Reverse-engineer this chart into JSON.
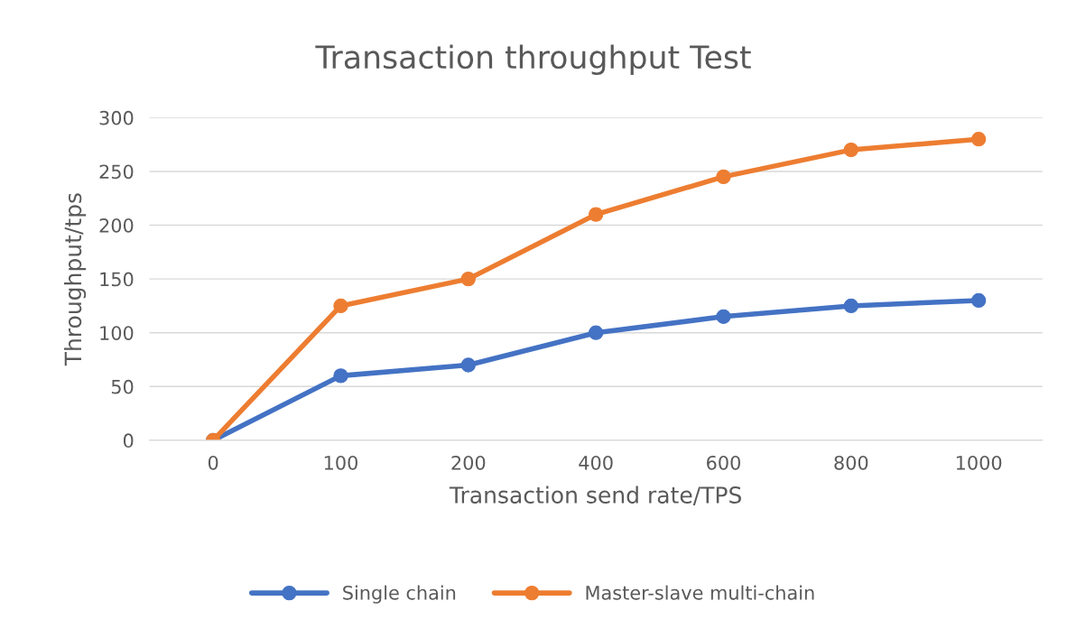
{
  "chart_data": {
    "type": "line",
    "title": "Transaction throughput Test",
    "xlabel": "Transaction send rate/TPS",
    "ylabel": "Throughput/tps",
    "categories": [
      "0",
      "100",
      "200",
      "400",
      "600",
      "800",
      "1000"
    ],
    "series": [
      {
        "name": "Single chain",
        "color": "#4472c4",
        "values": [
          0,
          60,
          70,
          100,
          115,
          125,
          130
        ]
      },
      {
        "name": "Master-slave multi-chain",
        "color": "#ed7d31",
        "values": [
          0,
          125,
          150,
          210,
          245,
          270,
          280
        ]
      }
    ],
    "ylim": [
      0,
      300
    ],
    "yticks": [
      0,
      50,
      100,
      150,
      200,
      250,
      300
    ],
    "grid": "y",
    "legend": "bottom",
    "marker": "circle",
    "line_style": "solid"
  }
}
